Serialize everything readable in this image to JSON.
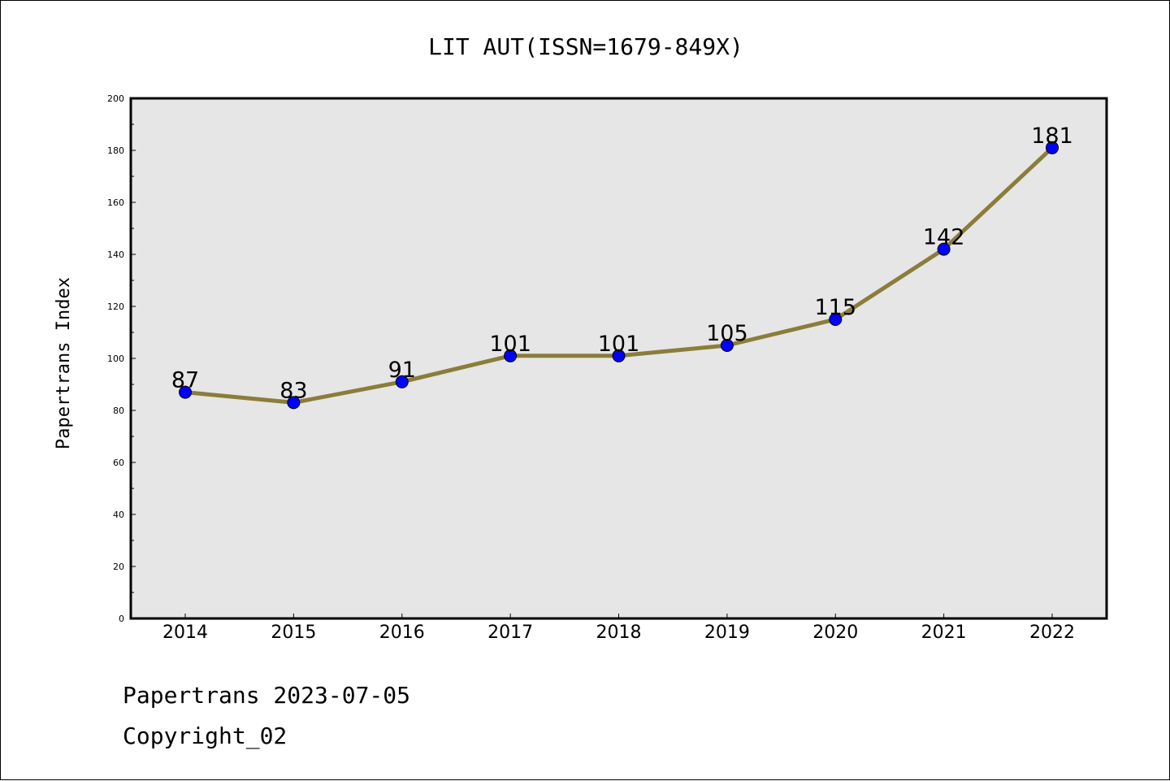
{
  "chart_data": {
    "type": "line",
    "title": "LIT AUT(ISSN=1679-849X)",
    "ylabel": "Papertrans Index",
    "xlabel": "",
    "categories": [
      "2014",
      "2015",
      "2016",
      "2017",
      "2018",
      "2019",
      "2020",
      "2021",
      "2022"
    ],
    "values": [
      87,
      83,
      91,
      101,
      101,
      105,
      115,
      142,
      181
    ],
    "ylim": [
      0,
      200
    ],
    "yticks": [
      "0",
      "20",
      "40",
      "60",
      "80",
      "100",
      "120",
      "140",
      "160",
      "180",
      "200"
    ],
    "grid": false,
    "legend": "none"
  },
  "footer": {
    "line1": "Papertrans 2023-07-05",
    "line2": "Copyright_02"
  },
  "colors": {
    "line": "#8b7d3a",
    "marker": "#0000ff",
    "plot_background": "#e6e6e6"
  }
}
